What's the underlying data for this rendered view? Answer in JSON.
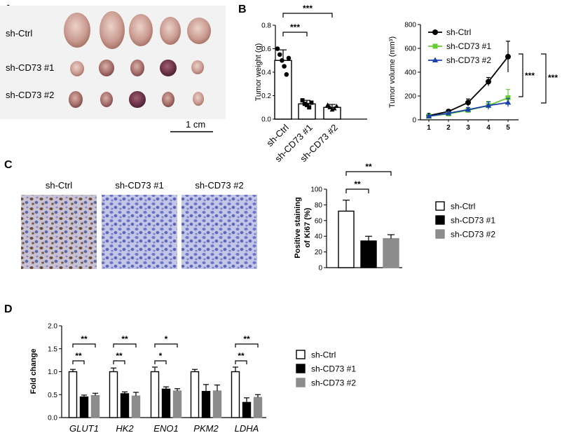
{
  "panels": {
    "A": {
      "letter": "A",
      "rows": [
        "sh-Ctrl",
        "sh-CD73 #1",
        "sh-CD73 #2"
      ],
      "scale_label": "1 cm"
    },
    "B": {
      "letter": "B"
    },
    "C": {
      "letter": "C",
      "ihc_labels": [
        "sh-Ctrl",
        "sh-CD73 #1",
        "sh-CD73 #2"
      ]
    },
    "D": {
      "letter": "D"
    }
  },
  "colors": {
    "ctrl": "#ffffff",
    "kd1_bar": "#000000",
    "kd2_bar": "#8c8c8c",
    "line_ctrl": "#000000",
    "line_kd1": "#66cc33",
    "line_kd2": "#1a3fa8"
  },
  "chart_data": [
    {
      "id": "tumor_weight",
      "type": "bar",
      "title": "",
      "ylabel": "Tumor weight (g)",
      "categories": [
        "sh-Ctrl",
        "sh-CD73 #1",
        "sh-CD73 #2"
      ],
      "values": [
        0.5,
        0.13,
        0.1
      ],
      "errors": [
        0.09,
        0.03,
        0.025
      ],
      "ylim": [
        0,
        0.8
      ],
      "yticks": [
        "0.0",
        "0.2",
        "0.4",
        "0.6",
        "0.8"
      ],
      "points": [
        [
          0.6,
          0.55,
          0.5,
          0.45,
          0.38,
          0.52
        ],
        [
          0.16,
          0.13,
          0.12,
          0.1,
          0.14
        ],
        [
          0.12,
          0.1,
          0.08,
          0.09,
          0.11
        ]
      ],
      "significance": [
        {
          "pair": [
            0,
            1
          ],
          "label": "***"
        },
        {
          "pair": [
            0,
            2
          ],
          "label": "***"
        }
      ]
    },
    {
      "id": "tumor_volume",
      "type": "line",
      "ylabel": "Tumor volume (mm³)",
      "x": [
        "1",
        "2",
        "3",
        "4",
        "5"
      ],
      "ylim": [
        0,
        800
      ],
      "yticks": [
        "0",
        "200",
        "400",
        "600",
        "800"
      ],
      "series": [
        {
          "name": "sh-Ctrl",
          "values": [
            35,
            70,
            145,
            320,
            530
          ],
          "errors": [
            10,
            15,
            30,
            35,
            130
          ],
          "marker": "circle"
        },
        {
          "name": "sh-CD73 #1",
          "values": [
            30,
            50,
            80,
            120,
            185
          ],
          "errors": [
            8,
            12,
            20,
            35,
            70
          ],
          "marker": "square"
        },
        {
          "name": "sh-CD73 #2",
          "values": [
            30,
            55,
            85,
            120,
            145
          ],
          "errors": [
            8,
            12,
            18,
            30,
            35
          ],
          "marker": "triangle"
        }
      ],
      "significance": [
        {
          "label": "***"
        },
        {
          "label": "***"
        }
      ]
    },
    {
      "id": "ki67",
      "type": "bar",
      "ylabel": "Positive staining of Ki67 (%)",
      "ylabel_lines": [
        "Positive staining",
        "of Ki67 (%)"
      ],
      "categories": [
        "sh-Ctrl",
        "sh-CD73 #1",
        "sh-CD73 #2"
      ],
      "values": [
        72,
        34,
        37
      ],
      "errors": [
        14,
        6,
        5
      ],
      "ylim": [
        0,
        100
      ],
      "yticks": [
        "0",
        "20",
        "40",
        "60",
        "80",
        "100"
      ],
      "legend": [
        "sh-Ctrl",
        "sh-CD73 #1",
        "sh-CD73 #2"
      ],
      "significance": [
        {
          "pair": [
            0,
            1
          ],
          "label": "**"
        },
        {
          "pair": [
            0,
            2
          ],
          "label": "**"
        }
      ]
    },
    {
      "id": "fold_change",
      "type": "bar",
      "ylabel": "Fold change",
      "categories": [
        "GLUT1",
        "HK2",
        "ENO1",
        "PKM2",
        "LDHA"
      ],
      "series": [
        {
          "name": "sh-Ctrl",
          "values": [
            1.0,
            1.0,
            1.0,
            1.0,
            1.0
          ],
          "errors": [
            0.05,
            0.08,
            0.1,
            0.05,
            0.1
          ]
        },
        {
          "name": "sh-CD73 #1",
          "values": [
            0.45,
            0.52,
            0.62,
            0.57,
            0.33
          ],
          "errors": [
            0.04,
            0.04,
            0.05,
            0.15,
            0.1
          ]
        },
        {
          "name": "sh-CD73 #2",
          "values": [
            0.48,
            0.47,
            0.58,
            0.58,
            0.44
          ],
          "errors": [
            0.05,
            0.08,
            0.05,
            0.13,
            0.06
          ]
        }
      ],
      "ylim": [
        0,
        2.0
      ],
      "yticks": [
        "0.0",
        "0.5",
        "1.0",
        "1.5",
        "2.0"
      ],
      "legend": [
        "sh-Ctrl",
        "sh-CD73 #1",
        "sh-CD73 #2"
      ],
      "significance": [
        {
          "gene": 0,
          "lower": "**",
          "upper": "**"
        },
        {
          "gene": 1,
          "lower": "**",
          "upper": "**"
        },
        {
          "gene": 2,
          "lower": "*",
          "upper": "*"
        },
        {
          "gene": 4,
          "lower": "**",
          "upper": "**"
        }
      ]
    }
  ]
}
